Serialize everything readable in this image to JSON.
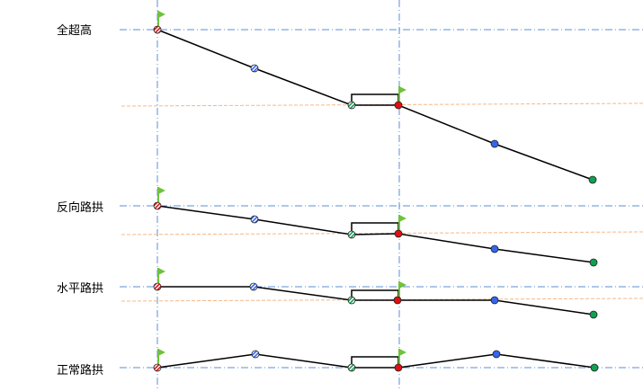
{
  "rows": [
    {
      "label": "全超高"
    },
    {
      "label": "反向路拱"
    },
    {
      "label": "水平路拱"
    },
    {
      "label": "正常路拱"
    }
  ],
  "colors": {
    "axis_line": "#5b8fd6",
    "centre_line": "#f5b887",
    "profile_line": "#000000",
    "flag": "#6fc23c",
    "left_edge": "#e01010",
    "centre": "#3366ee",
    "right_edge": "#10a050"
  },
  "icons": {
    "marker": "flag-icon"
  }
}
